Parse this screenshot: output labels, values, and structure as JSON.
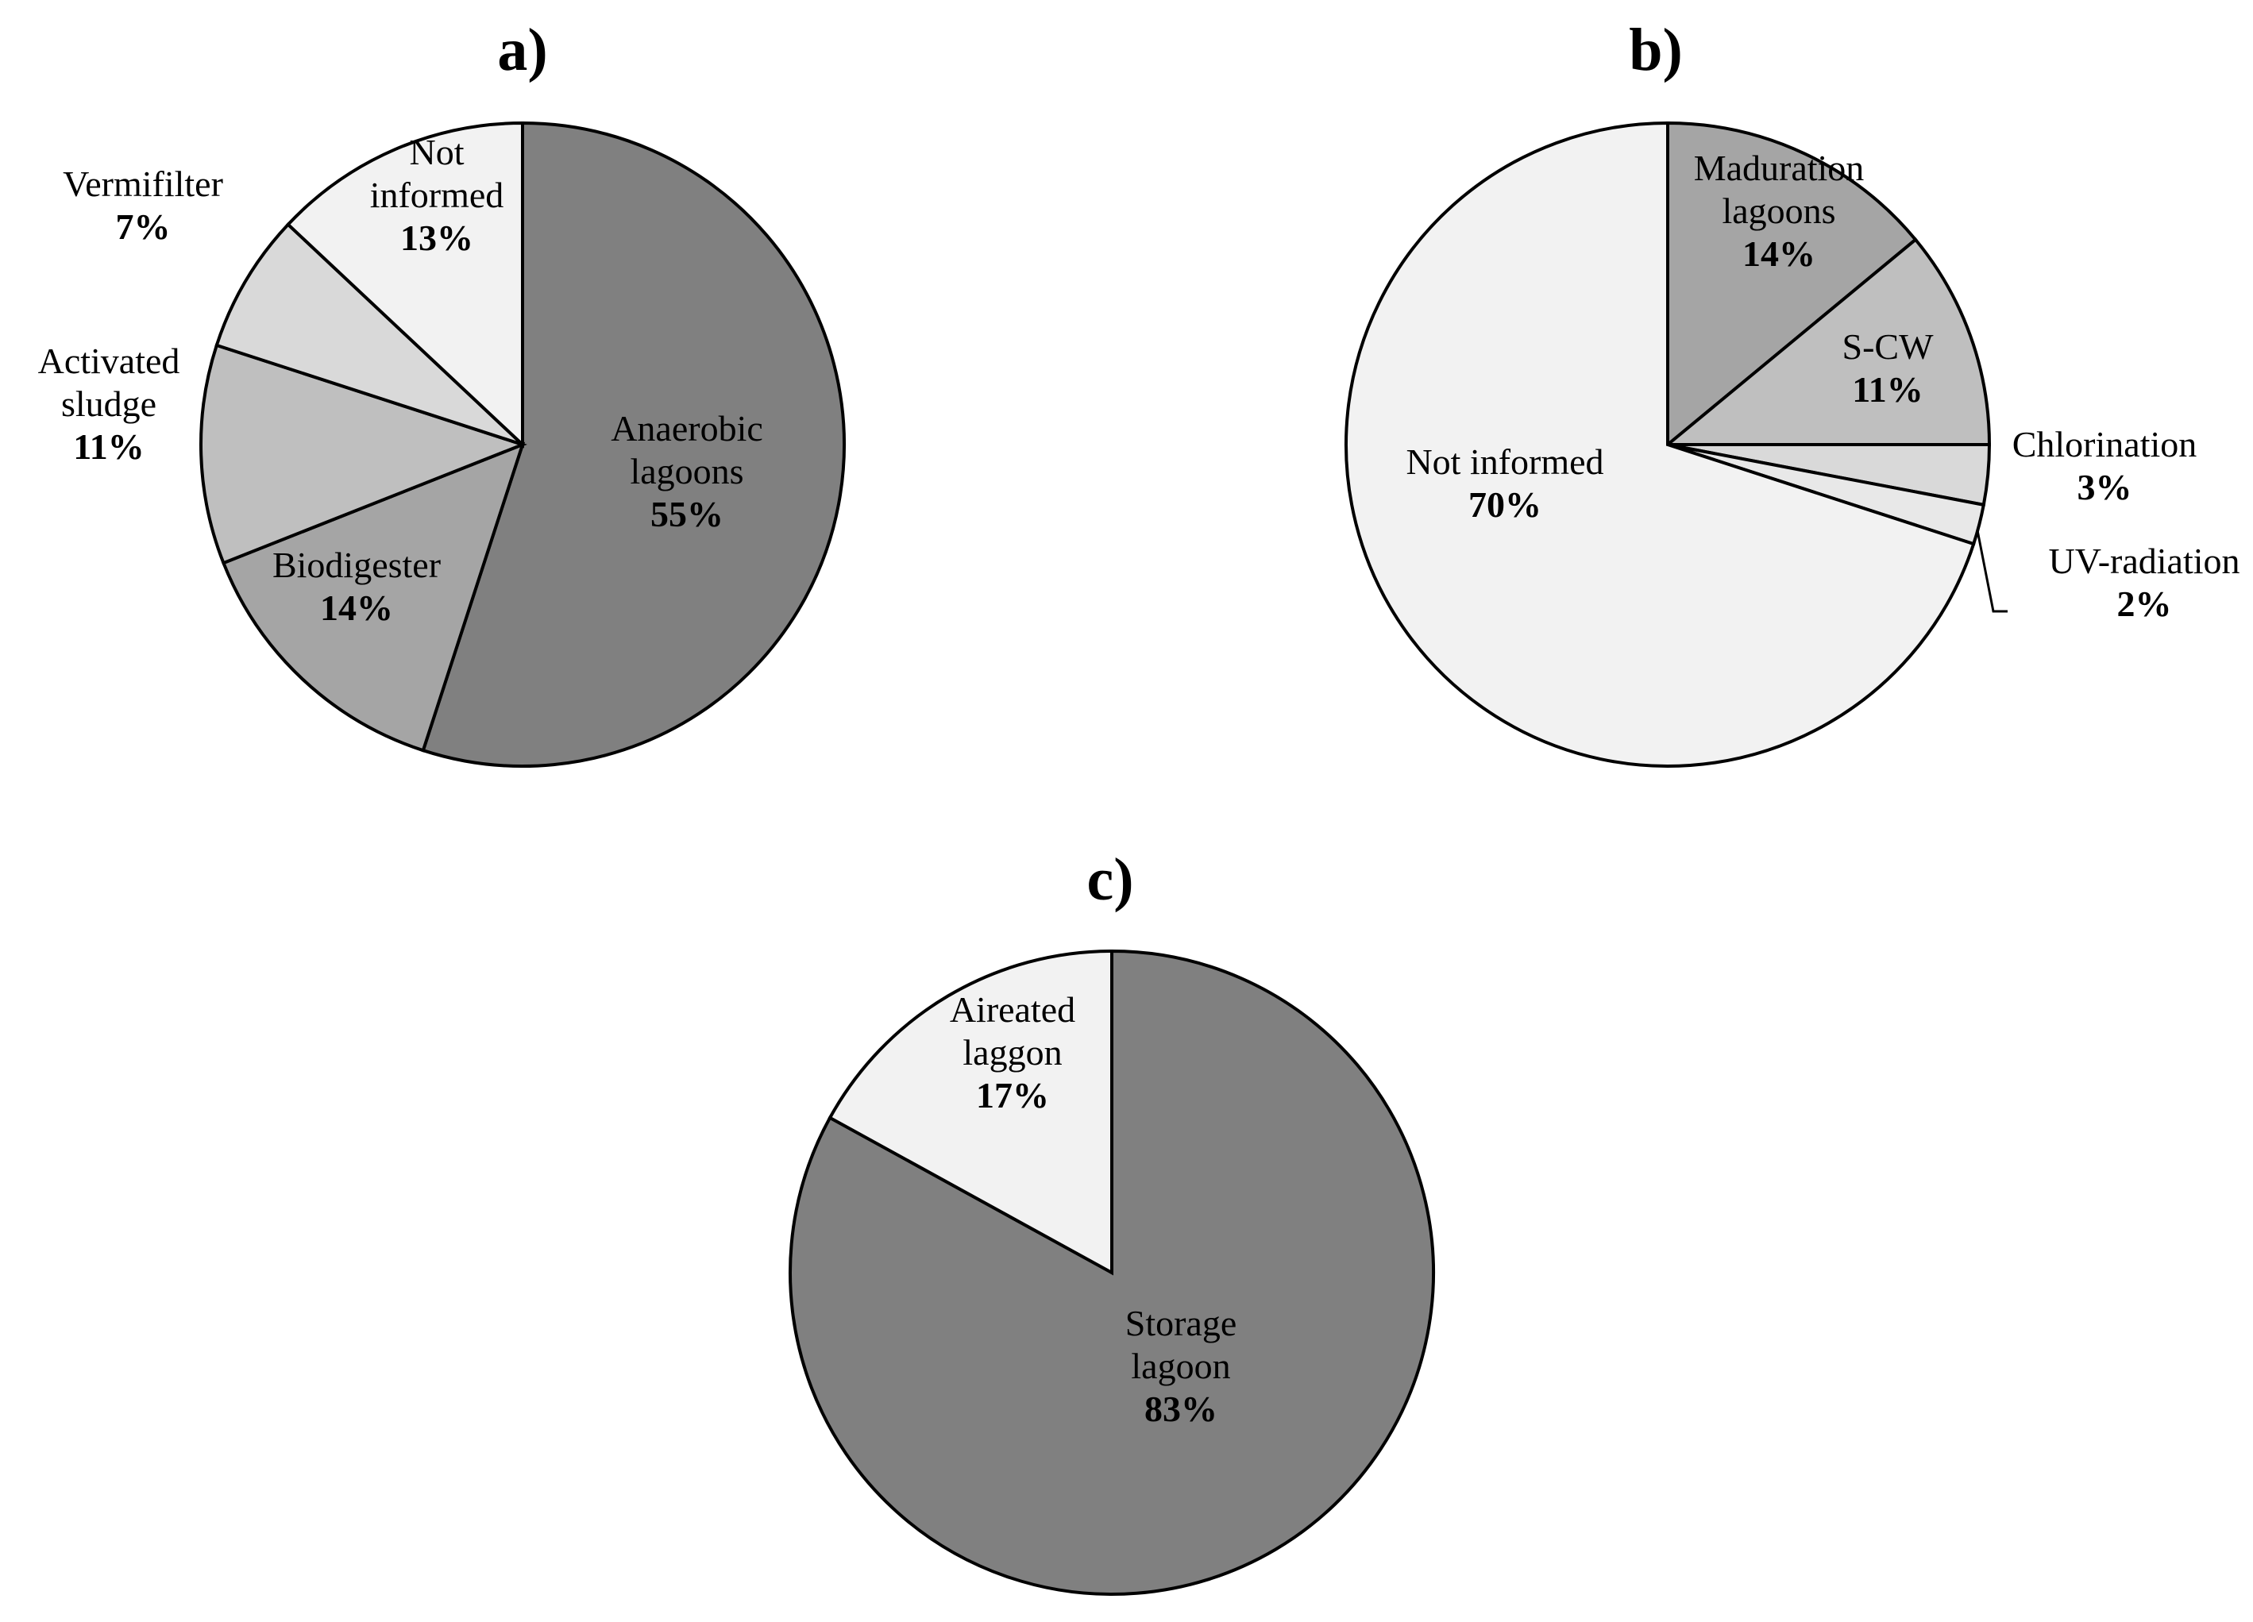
{
  "chart_data": [
    {
      "type": "pie",
      "title": "a)",
      "slices": [
        {
          "label": [
            "Anaerobic",
            "lagoons"
          ],
          "value": 55,
          "value_label": "55%",
          "color": "#808080"
        },
        {
          "label": [
            "Biodigester"
          ],
          "value": 14,
          "value_label": "14%",
          "color": "#a5a5a5"
        },
        {
          "label": [
            "Activated",
            "sludge"
          ],
          "value": 11,
          "value_label": "11%",
          "color": "#bfbfbf"
        },
        {
          "label": [
            "Vermifilter"
          ],
          "value": 7,
          "value_label": "7%",
          "color": "#d9d9d9"
        },
        {
          "label": [
            "Not",
            "informed"
          ],
          "value": 13,
          "value_label": "13%",
          "color": "#f2f2f2"
        }
      ]
    },
    {
      "type": "pie",
      "title": "b)",
      "slices": [
        {
          "label": [
            "Maduration",
            "lagoons"
          ],
          "value": 14,
          "value_label": "14%",
          "color": "#a5a5a5"
        },
        {
          "label": [
            "S-CW"
          ],
          "value": 11,
          "value_label": "11%",
          "color": "#bfbfbf"
        },
        {
          "label": [
            "Chlorination"
          ],
          "value": 3,
          "value_label": "3%",
          "color": "#d9d9d9"
        },
        {
          "label": [
            "UV-radiation"
          ],
          "value": 2,
          "value_label": "2%",
          "color": "#e8e8e8"
        },
        {
          "label": [
            "Not informed"
          ],
          "value": 70,
          "value_label": "70%",
          "color": "#f2f2f2"
        }
      ]
    },
    {
      "type": "pie",
      "title": "c)",
      "slices": [
        {
          "label": [
            "Storage",
            "lagoon"
          ],
          "value": 83,
          "value_label": "83%",
          "color": "#808080"
        },
        {
          "label": [
            "Aireated",
            "laggon"
          ],
          "value": 17,
          "value_label": "17%",
          "color": "#f2f2f2"
        }
      ]
    }
  ]
}
